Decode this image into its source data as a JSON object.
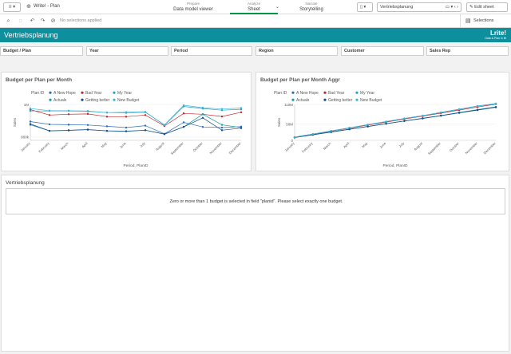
{
  "nav": {
    "menu_icon": "menu-icon",
    "app_name": "Write! - Plan",
    "tabs": [
      {
        "small": "Prepare",
        "big": "Data model viewer"
      },
      {
        "small": "Analyze",
        "big": "Sheet"
      },
      {
        "small": "Narrate",
        "big": "Storytelling"
      }
    ],
    "sheet_selector": "Vertriebsplanung",
    "edit_sheet": "Edit sheet"
  },
  "toolbar": {
    "no_selections": "No selections applied",
    "selections": "Selections"
  },
  "sheet": {
    "title": "Vertriebsplanung",
    "logo_main": "Lrite!",
    "logo_sub": "Data & Plan in BI"
  },
  "filters": [
    "Budget / Plan",
    "Year",
    "Period",
    "Region",
    "Customer",
    "Sales Rep"
  ],
  "chart1": {
    "title": "Budget per Plan per Month",
    "legend_title": "Plan ID",
    "ylabel": "Sales",
    "xlabel": "Period, PlanID",
    "yticks": [
      "1M",
      "800k"
    ]
  },
  "chart2": {
    "title": "Budget per Plan per Month Aggr",
    "legend_title": "Plan ID",
    "ylabel": "Sales",
    "xlabel": "Period, PlanID",
    "yticks": [
      "110M",
      "50M",
      "0"
    ]
  },
  "table": {
    "title": "Vertriebsplanung",
    "message": "Zero or more than 1 budget is selected in field \"planid\". Please select exactly one budget."
  },
  "colors": {
    "accent": "#0d8f9e",
    "A New Hope": "#2a6ebb",
    "Bad Year": "#c0282e",
    "My Year": "#22a3c4",
    "Actuals": "#1b9ea7",
    "Getting better": "#1a4c8a",
    "New Budget": "#3fb6d6"
  },
  "chart_data": [
    {
      "type": "line",
      "title": "Budget per Plan per Month",
      "xlabel": "Period, PlanID",
      "ylabel": "Sales",
      "categories": [
        "January",
        "February",
        "March",
        "April",
        "May",
        "June",
        "July",
        "August",
        "September",
        "October",
        "November",
        "December"
      ],
      "ylim": [
        780000,
        1000000
      ],
      "series": [
        {
          "name": "A New Hope",
          "values": [
            895000,
            878000,
            876000,
            874000,
            866000,
            858000,
            870000,
            820000,
            890000,
            862000,
            858000,
            864000
          ]
        },
        {
          "name": "Bad Year",
          "values": [
            968000,
            935000,
            940000,
            942000,
            925000,
            925000,
            935000,
            868000,
            945000,
            940000,
            926000,
            952000
          ]
        },
        {
          "name": "My Year",
          "values": [
            960000,
            960000,
            960000,
            958000,
            950000,
            952000,
            954000,
            872000,
            988000,
            975000,
            965000,
            970000
          ]
        },
        {
          "name": "Actuals",
          "values": [
            875000,
            838000,
            840000,
            845000,
            838000,
            835000,
            842000,
            818000,
            862000,
            940000,
            875000,
            858000
          ]
        },
        {
          "name": "Getting better",
          "values": [
            880000,
            838000,
            842000,
            846000,
            838000,
            836000,
            842000,
            818000,
            862000,
            918000,
            842000,
            855000
          ]
        },
        {
          "name": "New Budget",
          "values": [
            975000,
            962000,
            962000,
            960000,
            950000,
            948000,
            952000,
            875000,
            995000,
            980000,
            972000,
            978000
          ]
        }
      ]
    },
    {
      "type": "line",
      "title": "Budget per Plan per Month Aggr",
      "xlabel": "Period, PlanID",
      "ylabel": "Sales",
      "categories": [
        "January",
        "February",
        "March",
        "April",
        "May",
        "June",
        "July",
        "August",
        "September",
        "October",
        "November",
        "December"
      ],
      "ylim": [
        0,
        110000000
      ],
      "series": [
        {
          "name": "A New Hope",
          "values": [
            8500000,
            17000000,
            25500000,
            34000000,
            42500000,
            51000000,
            59500000,
            67000000,
            75500000,
            84000000,
            92500000,
            101000000
          ]
        },
        {
          "name": "Bad Year",
          "values": [
            9500000,
            18800000,
            28200000,
            37600000,
            46800000,
            56000000,
            65300000,
            74000000,
            83400000,
            92800000,
            102000000,
            111000000
          ]
        },
        {
          "name": "My Year",
          "values": [
            9600000,
            19200000,
            28800000,
            38400000,
            47900000,
            57400000,
            66900000,
            75600000,
            85400000,
            95200000,
            104800000,
            112000000
          ]
        },
        {
          "name": "Actuals",
          "values": [
            8700000,
            17100000,
            25500000,
            34000000,
            42400000,
            50700000,
            59100000,
            67300000,
            75900000,
            85300000,
            94000000,
            102600000
          ]
        },
        {
          "name": "Getting better",
          "values": [
            8800000,
            17200000,
            25600000,
            34100000,
            42500000,
            50900000,
            59300000,
            67500000,
            75700000,
            84900000,
            93100000,
            101600000
          ]
        },
        {
          "name": "New Budget",
          "values": [
            9700000,
            19400000,
            29000000,
            38600000,
            48100000,
            57600000,
            67100000,
            75800000,
            85800000,
            95600000,
            105300000,
            113000000
          ]
        }
      ]
    }
  ]
}
